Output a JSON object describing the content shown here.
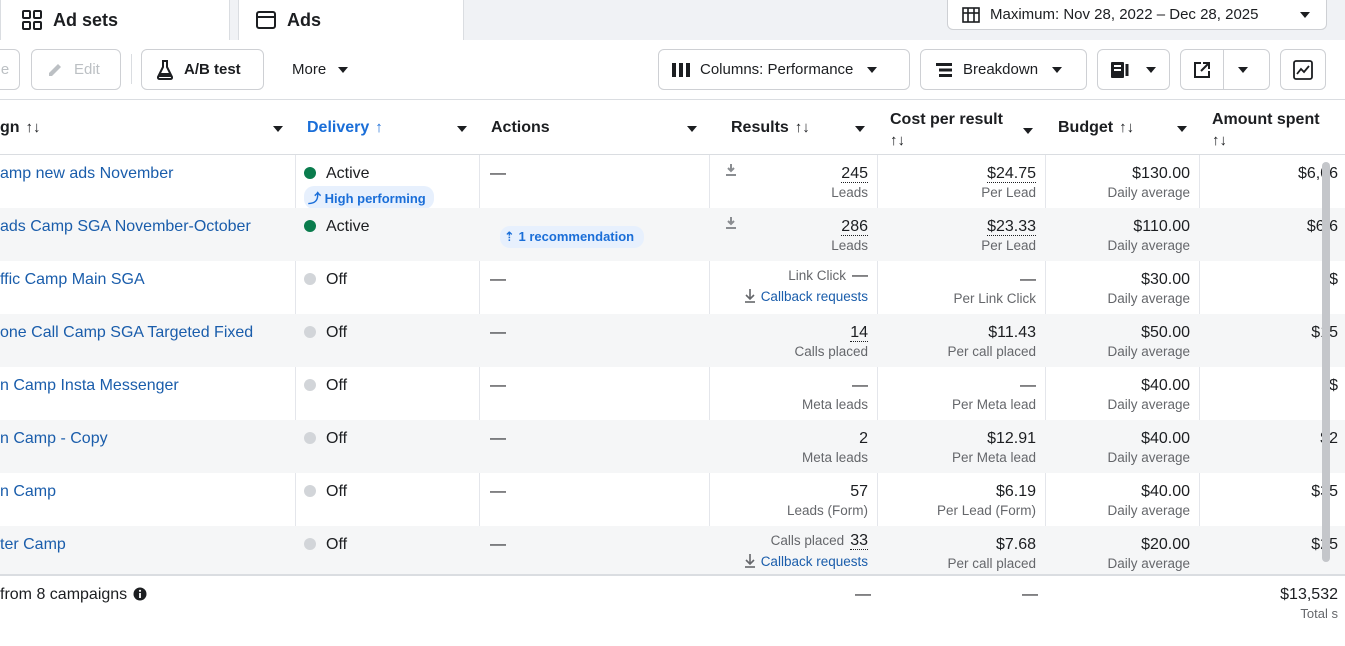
{
  "tabs": [
    {
      "label": "Ad sets",
      "icon": "grid-icon"
    },
    {
      "label": "Ads",
      "icon": "window-icon"
    }
  ],
  "date_range": "Maximum: Nov 28, 2022 – Dec 28, 2025",
  "toolbar": {
    "cut_label": "e",
    "edit_label": "Edit",
    "ab_test_label": "A/B test",
    "more_label": "More",
    "columns_label": "Columns: Performance",
    "breakdown_label": "Breakdown"
  },
  "headers": {
    "name": "gn",
    "delivery": "Delivery",
    "actions": "Actions",
    "results": "Results",
    "cost_per_result": "Cost per result",
    "budget": "Budget",
    "amount_spent": "Amount spent",
    "sort_icon": "↑↓",
    "sort_up": "↑"
  },
  "rows": [
    {
      "name": "amp new ads November",
      "delivery": "Active",
      "status": "on",
      "badge": "High performing",
      "actions": "—",
      "result": "245",
      "result_label": "Leads",
      "cost": "$24.75",
      "cost_label": "Per Lead",
      "budget": "$130.00",
      "budget_label": "Daily average",
      "spent": "$6,06"
    },
    {
      "name": "ads Camp SGA November-October",
      "delivery": "Active",
      "status": "on",
      "recommendation": "1 recommendation",
      "result": "286",
      "result_label": "Leads",
      "cost": "$23.33",
      "cost_label": "Per Lead",
      "budget": "$110.00",
      "budget_label": "Daily average",
      "spent": "$6,6"
    },
    {
      "name": "ffic Camp Main SGA",
      "delivery": "Off",
      "status": "off",
      "actions": "—",
      "result_prefix": "Link Click",
      "result": "—",
      "result_link": "Callback requests",
      "cost": "—",
      "cost_label": "Per Link Click",
      "budget": "$30.00",
      "budget_label": "Daily average",
      "spent": "$"
    },
    {
      "name": "one Call Camp SGA Targeted Fixed",
      "delivery": "Off",
      "status": "off",
      "actions": "—",
      "result": "14",
      "result_label": "Calls placed",
      "cost": "$11.43",
      "cost_label": "Per call placed",
      "budget": "$50.00",
      "budget_label": "Daily average",
      "spent": "$15"
    },
    {
      "name": "n Camp Insta Messenger",
      "delivery": "Off",
      "status": "off",
      "actions": "—",
      "result": "—",
      "result_label": "Meta leads",
      "cost": "—",
      "cost_label": "Per Meta lead",
      "budget": "$40.00",
      "budget_label": "Daily average",
      "spent": "$"
    },
    {
      "name": "n Camp - Copy",
      "delivery": "Off",
      "status": "off",
      "actions": "—",
      "result": "2",
      "result_label": "Meta leads",
      "cost": "$12.91",
      "cost_label": "Per Meta lead",
      "budget": "$40.00",
      "budget_label": "Daily average",
      "spent": "$2"
    },
    {
      "name": "n Camp",
      "delivery": "Off",
      "status": "off",
      "actions": "—",
      "result": "57",
      "result_label": "Leads (Form)",
      "cost": "$6.19",
      "cost_label": "Per Lead (Form)",
      "budget": "$40.00",
      "budget_label": "Daily average",
      "spent": "$35"
    },
    {
      "name": "ter Camp",
      "delivery": "Off",
      "status": "off",
      "actions": "—",
      "result_prefix": "Calls placed",
      "result": "33",
      "result_link": "Callback requests",
      "cost": "$7.68",
      "cost_label": "Per call placed",
      "budget": "$20.00",
      "budget_label": "Daily average",
      "spent": "$25"
    }
  ],
  "summary": {
    "label": "from 8 campaigns",
    "results": "—",
    "cost": "—",
    "spent": "$13,532",
    "spent_label": "Total s"
  }
}
